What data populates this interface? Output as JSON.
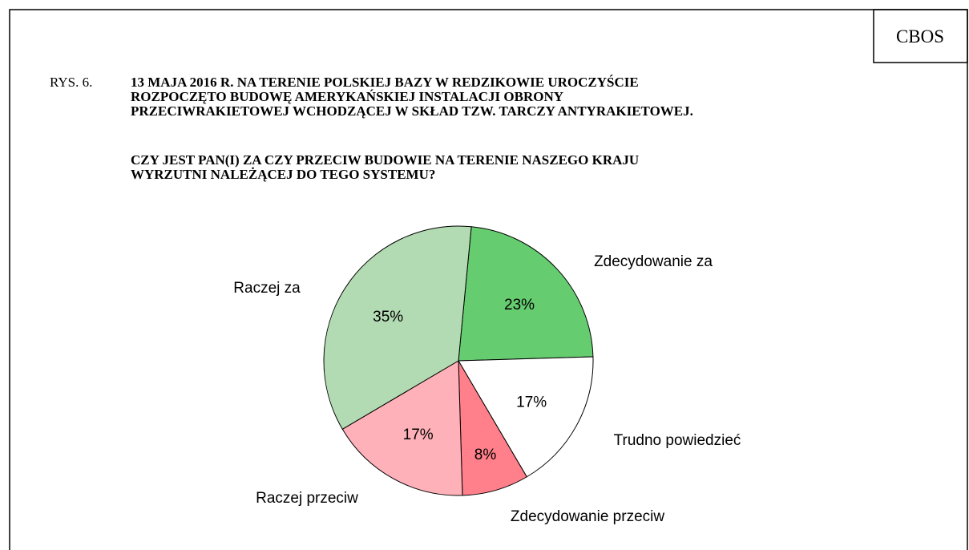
{
  "chart_data": {
    "type": "pie",
    "source": "CBOS",
    "figure_label": "RYS. 6.",
    "title_lines": [
      "13 MAJA 2016 R. NA TERENIE POLSKIEJ BAZY W REDZIKOWIE UROCZYŚCIE",
      "ROZPOCZĘTO BUDOWĘ AMERYKAŃSKIEJ INSTALACJI OBRONY",
      "PRZECIWRAKIETOWEJ WCHODZĄCEJ W SKŁAD TZW. TARCZY ANTYRAKIETOWEJ."
    ],
    "question_lines": [
      "CZY JEST PAN(I) ZA CZY PRZECIW BUDOWIE NA TERENIE NASZEGO KRAJU",
      "WYRZUTNI NALEŻĄCEJ DO TEGO SYSTEMU?"
    ],
    "categories": [
      "Zdecydowanie za",
      "Trudno powiedzieć",
      "Zdecydowanie przeciw",
      "Raczej przeciw",
      "Raczej za"
    ],
    "values": [
      23,
      17,
      8,
      17,
      35
    ],
    "value_labels": [
      "23%",
      "17%",
      "8%",
      "17%",
      "35%"
    ],
    "colors": [
      "#66cc70",
      "#ffffff",
      "#ff7f8a",
      "#ffb1b9",
      "#b3dbb3"
    ]
  }
}
